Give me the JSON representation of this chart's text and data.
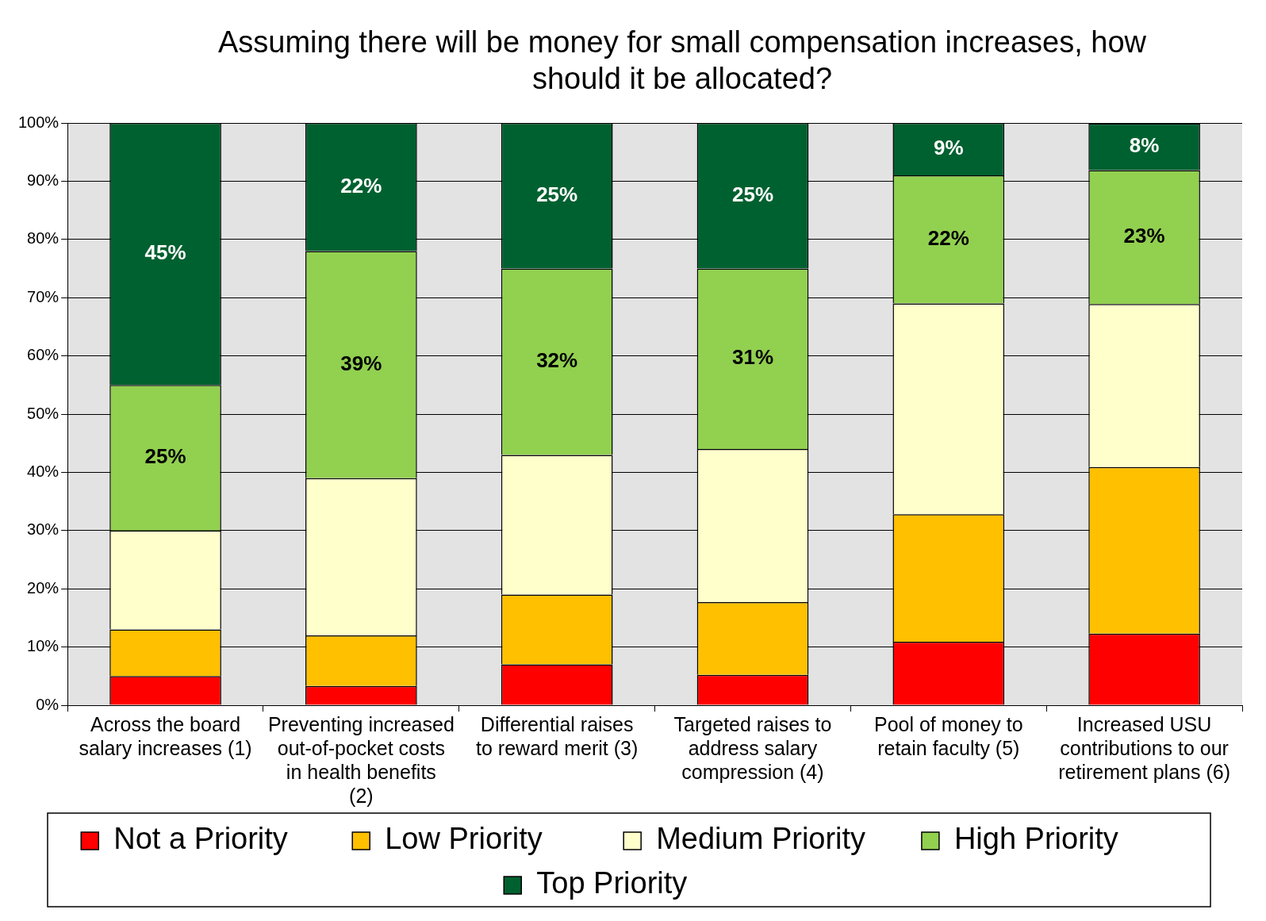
{
  "chart_data": {
    "type": "bar",
    "stacked": true,
    "title": "Assuming there will be money for small compensation increases, how should it be allocated?",
    "categories": [
      "Across the board salary increases (1)",
      "Preventing increased out-of-pocket costs in health benefits (2)",
      "Differential raises to reward merit (3)",
      "Targeted raises to address salary compression (4)",
      "Pool of money to retain faculty (5)",
      "Increased USU contributions to our retirement plans (6)"
    ],
    "series": [
      {
        "name": "Not a Priority",
        "color": "#ff0000",
        "values": [
          5,
          3.3,
          7,
          5.2,
          10.9,
          12.3
        ]
      },
      {
        "name": "Low Priority",
        "color": "#ffc000",
        "values": [
          8,
          8.7,
          12,
          12.5,
          21.9,
          28.6
        ]
      },
      {
        "name": "Medium Priority",
        "color": "#ffffcc",
        "values": [
          17,
          27,
          24,
          26.3,
          36.2,
          28
        ]
      },
      {
        "name": "High Priority",
        "color": "#92d050",
        "values": [
          25,
          39,
          32,
          31,
          22,
          23
        ],
        "value_labels": [
          "25%",
          "39%",
          "32%",
          "31%",
          "22%",
          "23%"
        ]
      },
      {
        "name": "Top Priority",
        "color": "#006130",
        "values": [
          45,
          22,
          25,
          25,
          9,
          8
        ],
        "value_labels": [
          "45%",
          "22%",
          "25%",
          "25%",
          "9%",
          "8%"
        ]
      }
    ],
    "ylim": [
      0,
      100
    ],
    "yticks": [
      {
        "value": 0,
        "label": "0%"
      },
      {
        "value": 10,
        "label": "10%"
      },
      {
        "value": 20,
        "label": "20%"
      },
      {
        "value": 30,
        "label": "30%"
      },
      {
        "value": 40,
        "label": "40%"
      },
      {
        "value": 50,
        "label": "50%"
      },
      {
        "value": 60,
        "label": "60%"
      },
      {
        "value": 70,
        "label": "70%"
      },
      {
        "value": 80,
        "label": "80%"
      },
      {
        "value": 90,
        "label": "90%"
      },
      {
        "value": 100,
        "label": "100%"
      }
    ],
    "grid": "y",
    "legend": "bottom"
  }
}
